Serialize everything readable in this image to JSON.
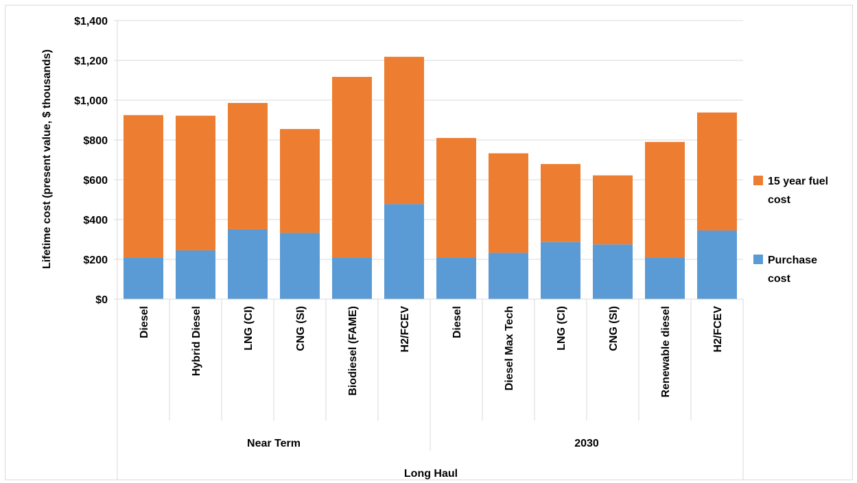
{
  "chart_data": {
    "type": "bar",
    "stacked": true,
    "ylabel": "Lifetime cost (present value, $ thousands)",
    "xlabel": "Long Haul",
    "ylim": [
      0,
      1400
    ],
    "y_ticks": [
      0,
      200,
      400,
      600,
      800,
      1000,
      1200,
      1400
    ],
    "y_tick_labels": [
      "$0",
      "$200",
      "$400",
      "$600",
      "$800",
      "$1,000",
      "$1,200",
      "$1,400"
    ],
    "grid": true,
    "legend_position": "right",
    "groups": [
      {
        "label": "Near Term",
        "count": 6
      },
      {
        "label": "2030",
        "count": 6
      }
    ],
    "categories": [
      "Diesel",
      "Hybrid Diesel",
      "LNG (CI)",
      "CNG (SI)",
      "Biodiesel (FAME)",
      "H2/FCEV",
      "Diesel",
      "Diesel Max Tech",
      "LNG (CI)",
      "CNG (SI)",
      "Renewable diesel",
      "H2/FCEV"
    ],
    "series": [
      {
        "name": "Purchase cost",
        "legend_lines": [
          "Purchase",
          "cost"
        ],
        "color": "#5b9bd5",
        "values": [
          210,
          245,
          352,
          333,
          210,
          478,
          210,
          233,
          287,
          275,
          210,
          345
        ]
      },
      {
        "name": "15 year fuel cost",
        "legend_lines": [
          "15 year fuel",
          "cost"
        ],
        "color": "#ed7d31",
        "values": [
          715,
          677,
          634,
          522,
          907,
          740,
          600,
          500,
          392,
          347,
          580,
          593
        ]
      }
    ]
  }
}
